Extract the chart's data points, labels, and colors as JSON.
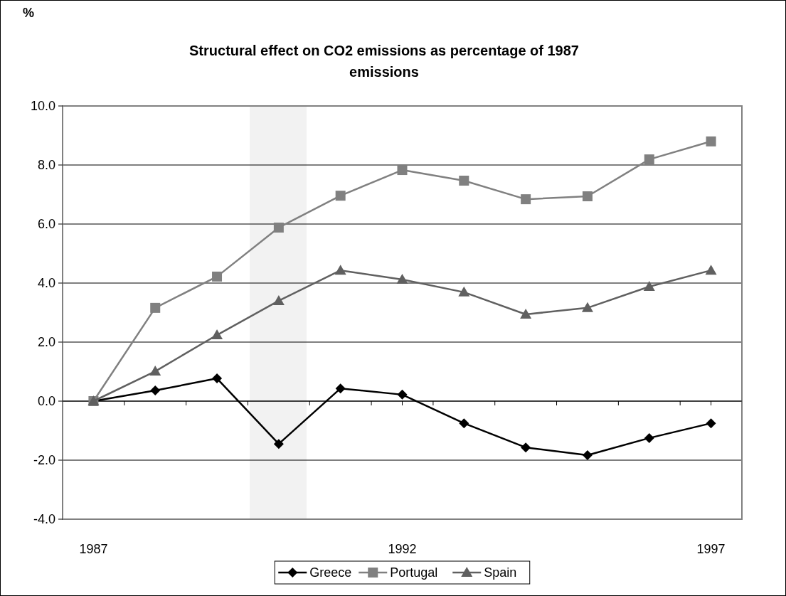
{
  "chart_data": {
    "type": "line",
    "title": "Structural effect on CO2 emissions as percentage of 1987 emissions",
    "annotations": [
      "%"
    ],
    "x": [
      1987,
      1988,
      1989,
      1990,
      1991,
      1992,
      1993,
      1994,
      1995,
      1996,
      1997
    ],
    "series": [
      {
        "name": "Greece",
        "color": "#000000",
        "marker": "diamond",
        "values": [
          0,
          0.36,
          0.77,
          -1.45,
          0.43,
          0.22,
          -0.75,
          -1.57,
          -1.83,
          -1.25,
          -0.75
        ]
      },
      {
        "name": "Portugal",
        "color": "#808080",
        "marker": "square",
        "values": [
          0,
          3.16,
          4.22,
          5.88,
          6.96,
          7.83,
          7.47,
          6.84,
          6.94,
          8.19,
          8.8
        ]
      },
      {
        "name": "Spain",
        "color": "#606060",
        "marker": "triangle",
        "values": [
          0,
          1.01,
          2.24,
          3.4,
          4.43,
          4.12,
          3.69,
          2.94,
          3.16,
          3.88,
          4.43
        ]
      }
    ],
    "xlim": [
      1986.5,
      1997.5
    ],
    "xticks": [
      1987,
      {
        "value": 1987.5,
        "label": null
      },
      {
        "value": 1988.5,
        "label": null
      },
      {
        "value": 1989.5,
        "label": null
      },
      {
        "value": 1990.5,
        "label": null
      },
      {
        "value": 1991.5,
        "label": null
      },
      1992,
      {
        "value": 1992.5,
        "label": null
      },
      {
        "value": 1993.5,
        "label": null
      },
      {
        "value": 1994.5,
        "label": null
      },
      {
        "value": 1995.5,
        "label": null
      },
      {
        "value": 1996.5,
        "label": null
      },
      1997
    ],
    "ylim": [
      -4,
      10
    ],
    "yticks": [
      {
        "value": -4,
        "label": "-4.0"
      },
      {
        "value": -2,
        "label": "-2.0"
      },
      {
        "value": 0,
        "label": "0.0"
      },
      {
        "value": 2,
        "label": "2.0"
      },
      {
        "value": 4,
        "label": "4.0"
      },
      {
        "value": 6,
        "label": "6.0"
      },
      {
        "value": 8,
        "label": "8.0"
      },
      {
        "value": 10,
        "label": "10.0"
      }
    ],
    "bands": [
      {
        "axis": "x",
        "from": 1989.53,
        "to": 1990.45,
        "color": "#f2f2f2"
      }
    ],
    "grid": "y",
    "legend": "bottom",
    "line_style": "solid"
  }
}
